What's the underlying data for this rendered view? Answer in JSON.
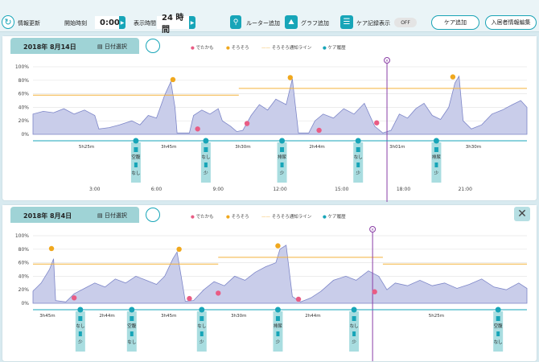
{
  "toolbar": {
    "refresh_label": "情報更新",
    "start_time_label": "開始時刻",
    "start_time_value": "0:00",
    "display_time_label": "表示時間",
    "display_time_value": "24 時間",
    "router_add_label": "ルーター追加",
    "graph_add_label": "グラフ追加",
    "care_record_label": "ケア記録表示",
    "care_record_toggle": "OFF",
    "care_add_label": "ケア追加",
    "resident_edit_label": "入居者情報編集"
  },
  "legend": {
    "out_label": "でたかも",
    "soro_label": "そろそろ",
    "line_label": "そろそろ通知ライン",
    "care_label": "ケア履歴"
  },
  "colors": {
    "accent": "#17a5b8",
    "area_fill": "#c9cdea",
    "area_stroke": "#7d86c8",
    "out_dot": "#e95c84",
    "soro_dot": "#f0a81e",
    "notify_line": "#f4b23a",
    "now_line": "#8a3fa6",
    "date_tab": "#9fd3d6"
  },
  "panels": [
    {
      "date": "2018年 8月14日",
      "date_select_label": "日付選択",
      "chart_data": {
        "type": "area",
        "x_unit": "hour",
        "xlim": [
          0,
          24
        ],
        "ylim": [
          0,
          100
        ],
        "y_ticks": [
          "100%",
          "80%",
          "60%",
          "40%",
          "20%",
          "0%"
        ],
        "x_ticks": [
          {
            "hour": 3,
            "label": "3:00"
          },
          {
            "hour": 6,
            "label": "6:00"
          },
          {
            "hour": 9,
            "label": "9:00"
          },
          {
            "hour": 12,
            "label": "12:00"
          },
          {
            "hour": 15,
            "label": "15:00"
          },
          {
            "hour": 18,
            "label": "18:00"
          },
          {
            "hour": 21,
            "label": "21:00"
          }
        ],
        "points": [
          [
            0,
            30
          ],
          [
            0.5,
            34
          ],
          [
            1,
            32
          ],
          [
            1.5,
            38
          ],
          [
            2,
            30
          ],
          [
            2.5,
            36
          ],
          [
            3,
            28
          ],
          [
            3.2,
            8
          ],
          [
            3.7,
            10
          ],
          [
            4.2,
            14
          ],
          [
            4.8,
            20
          ],
          [
            5.2,
            14
          ],
          [
            5.6,
            28
          ],
          [
            6.0,
            24
          ],
          [
            6.4,
            58
          ],
          [
            6.7,
            78
          ],
          [
            6.9,
            40
          ],
          [
            7.0,
            2
          ],
          [
            7.6,
            2
          ],
          [
            7.8,
            28
          ],
          [
            8.2,
            36
          ],
          [
            8.6,
            30
          ],
          [
            9.0,
            38
          ],
          [
            9.2,
            20
          ],
          [
            9.6,
            12
          ],
          [
            9.9,
            4
          ],
          [
            10.2,
            6
          ],
          [
            10.6,
            28
          ],
          [
            11.0,
            44
          ],
          [
            11.4,
            36
          ],
          [
            11.8,
            52
          ],
          [
            12.3,
            44
          ],
          [
            12.6,
            82
          ],
          [
            12.9,
            2
          ],
          [
            13.4,
            2
          ],
          [
            13.7,
            20
          ],
          [
            14.1,
            30
          ],
          [
            14.6,
            24
          ],
          [
            15.1,
            38
          ],
          [
            15.6,
            30
          ],
          [
            16.1,
            46
          ],
          [
            16.6,
            12
          ],
          [
            17.0,
            2
          ],
          [
            17.4,
            6
          ],
          [
            17.8,
            30
          ],
          [
            18.2,
            24
          ],
          [
            18.6,
            38
          ],
          [
            19.0,
            46
          ],
          [
            19.4,
            28
          ],
          [
            19.8,
            22
          ],
          [
            20.2,
            40
          ],
          [
            20.5,
            76
          ],
          [
            20.7,
            86
          ],
          [
            20.9,
            20
          ],
          [
            21.3,
            8
          ],
          [
            21.8,
            14
          ],
          [
            22.3,
            30
          ],
          [
            22.8,
            36
          ],
          [
            23.3,
            44
          ],
          [
            23.7,
            50
          ],
          [
            24,
            40
          ]
        ],
        "notify_line": [
          {
            "from": 0,
            "to": 10,
            "value": 58
          },
          {
            "from": 10,
            "to": 24,
            "value": 68
          }
        ],
        "out_events": [
          {
            "x": 8.0,
            "y": 8
          },
          {
            "x": 10.4,
            "y": 16
          },
          {
            "x": 13.9,
            "y": 6
          },
          {
            "x": 16.7,
            "y": 17
          }
        ],
        "soro_events": [
          {
            "x": 6.8,
            "y": 81
          },
          {
            "x": 12.5,
            "y": 84
          },
          {
            "x": 20.4,
            "y": 85
          }
        ],
        "now_hour": 17.2,
        "intervals": [
          {
            "x": 2.6,
            "label": "5h25m"
          },
          {
            "x": 6.6,
            "label": "3h45m"
          },
          {
            "x": 10.2,
            "label": "3h30m"
          },
          {
            "x": 13.8,
            "label": "2h44m"
          },
          {
            "x": 17.7,
            "label": "3h01m"
          },
          {
            "x": 21.4,
            "label": "3h30m"
          }
        ],
        "care_events": [
          {
            "x": 5.0,
            "top": "空腹",
            "bottom": "なし"
          },
          {
            "x": 8.4,
            "top": "なし",
            "bottom": "少"
          },
          {
            "x": 12.1,
            "top": "排尿",
            "bottom": "少"
          },
          {
            "x": 15.8,
            "top": "なし",
            "bottom": "少"
          },
          {
            "x": 19.6,
            "top": "排尿",
            "bottom": "少"
          }
        ]
      }
    },
    {
      "date": "2018年 8月4日",
      "date_select_label": "日付選択",
      "chart_data": {
        "type": "area",
        "x_unit": "hour",
        "xlim": [
          0,
          24
        ],
        "ylim": [
          0,
          100
        ],
        "y_ticks": [
          "100%",
          "80%",
          "60%",
          "40%",
          "20%",
          "0%"
        ],
        "x_ticks": [],
        "points": [
          [
            0,
            18
          ],
          [
            0.4,
            30
          ],
          [
            0.8,
            50
          ],
          [
            1.0,
            66
          ],
          [
            1.1,
            4
          ],
          [
            1.6,
            2
          ],
          [
            2.0,
            14
          ],
          [
            2.5,
            22
          ],
          [
            3.0,
            30
          ],
          [
            3.5,
            24
          ],
          [
            4.0,
            36
          ],
          [
            4.5,
            30
          ],
          [
            5.0,
            40
          ],
          [
            5.5,
            34
          ],
          [
            6.0,
            28
          ],
          [
            6.4,
            40
          ],
          [
            6.8,
            66
          ],
          [
            7.0,
            76
          ],
          [
            7.2,
            40
          ],
          [
            7.4,
            3
          ],
          [
            7.8,
            4
          ],
          [
            8.3,
            20
          ],
          [
            8.8,
            32
          ],
          [
            9.3,
            26
          ],
          [
            9.8,
            40
          ],
          [
            10.3,
            34
          ],
          [
            10.8,
            46
          ],
          [
            11.3,
            54
          ],
          [
            11.8,
            60
          ],
          [
            12.0,
            80
          ],
          [
            12.3,
            86
          ],
          [
            12.6,
            10
          ],
          [
            13.0,
            2
          ],
          [
            13.5,
            8
          ],
          [
            14.0,
            18
          ],
          [
            14.6,
            34
          ],
          [
            15.2,
            40
          ],
          [
            15.7,
            34
          ],
          [
            16.3,
            48
          ],
          [
            16.8,
            40
          ],
          [
            17.2,
            20
          ],
          [
            17.6,
            30
          ],
          [
            18.2,
            26
          ],
          [
            18.8,
            34
          ],
          [
            19.4,
            26
          ],
          [
            20.0,
            30
          ],
          [
            20.6,
            22
          ],
          [
            21.2,
            28
          ],
          [
            21.8,
            36
          ],
          [
            22.4,
            24
          ],
          [
            23.0,
            20
          ],
          [
            23.6,
            30
          ],
          [
            24,
            22
          ]
        ],
        "notify_line": [
          {
            "from": 0,
            "to": 9,
            "value": 58
          },
          {
            "from": 9,
            "to": 17,
            "value": 68
          },
          {
            "from": 17,
            "to": 24,
            "value": 58
          }
        ],
        "out_events": [
          {
            "x": 2.0,
            "y": 8
          },
          {
            "x": 7.6,
            "y": 7
          },
          {
            "x": 9.0,
            "y": 15
          },
          {
            "x": 12.9,
            "y": 6
          },
          {
            "x": 16.6,
            "y": 17
          }
        ],
        "soro_events": [
          {
            "x": 0.9,
            "y": 81
          },
          {
            "x": 7.1,
            "y": 80
          },
          {
            "x": 11.9,
            "y": 85
          }
        ],
        "now_hour": 16.5,
        "intervals": [
          {
            "x": 0.7,
            "label": "3h45m"
          },
          {
            "x": 3.6,
            "label": "2h44m"
          },
          {
            "x": 6.6,
            "label": "3h45m"
          },
          {
            "x": 10.0,
            "label": "3h30m"
          },
          {
            "x": 13.6,
            "label": "2h44m"
          },
          {
            "x": 19.6,
            "label": "5h25m"
          }
        ],
        "care_events": [
          {
            "x": 2.3,
            "top": "なし",
            "bottom": "少"
          },
          {
            "x": 4.8,
            "top": "空腹",
            "bottom": "なし"
          },
          {
            "x": 8.2,
            "top": "なし",
            "bottom": "少"
          },
          {
            "x": 11.9,
            "top": "排尿",
            "bottom": "少"
          },
          {
            "x": 15.6,
            "top": "なし",
            "bottom": "少"
          },
          {
            "x": 22.6,
            "top": "空腹",
            "bottom": "なし"
          }
        ]
      }
    }
  ]
}
